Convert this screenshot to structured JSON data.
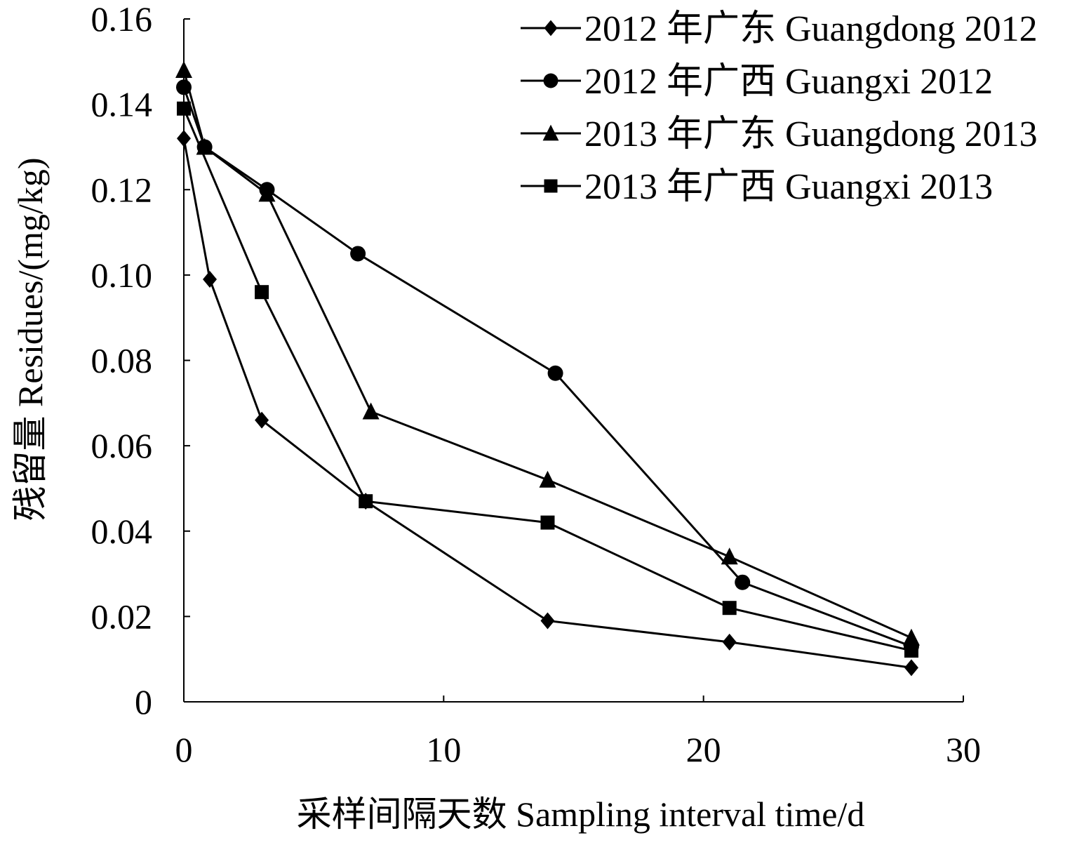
{
  "chart_data": {
    "type": "line",
    "title": "",
    "xlabel": "采样间隔天数 Sampling interval time/d",
    "ylabel": "残留量 Residues/(mg/kg)",
    "xlim": [
      0,
      30
    ],
    "ylim": [
      0,
      0.16
    ],
    "xticks": [
      0,
      10,
      20,
      30
    ],
    "xtick_labels": [
      "0",
      "10",
      "20",
      "30"
    ],
    "yticks": [
      0,
      0.02,
      0.04,
      0.06,
      0.08,
      0.1,
      0.12,
      0.14,
      0.16
    ],
    "ytick_labels": [
      "0",
      "0.02",
      "0.04",
      "0.06",
      "0.08",
      "0.10",
      "0.12",
      "0.14",
      "0.16"
    ],
    "grid": false,
    "legend_position": "top-right",
    "series": [
      {
        "name": "2012 年广东 Guangdong 2012",
        "marker": "diamond",
        "x": [
          0,
          1,
          3,
          7,
          14,
          21,
          28
        ],
        "y": [
          0.132,
          0.099,
          0.066,
          0.047,
          0.019,
          0.014,
          0.008
        ]
      },
      {
        "name": "2012 年广西 Guangxi 2012",
        "marker": "circle",
        "x": [
          0,
          0.8,
          3.2,
          6.7,
          14.3,
          21.5,
          28
        ],
        "y": [
          0.144,
          0.13,
          0.12,
          0.105,
          0.077,
          0.028,
          0.013
        ]
      },
      {
        "name": "2013 年广东 Guangdong 2013",
        "marker": "triangle",
        "x": [
          0,
          0.8,
          3.2,
          7.2,
          14,
          21,
          28
        ],
        "y": [
          0.148,
          0.13,
          0.119,
          0.068,
          0.052,
          0.034,
          0.015
        ]
      },
      {
        "name": "2013 年广西 Guangxi 2013",
        "marker": "square",
        "x": [
          0,
          3,
          7,
          14,
          21,
          28
        ],
        "y": [
          0.139,
          0.096,
          0.047,
          0.042,
          0.022,
          0.012
        ]
      }
    ]
  }
}
